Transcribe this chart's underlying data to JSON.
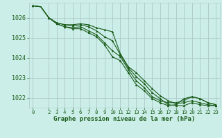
{
  "title": "Graphe pression niveau de la mer (hPa)",
  "background_color": "#cceee8",
  "grid_color": "#b0cccc",
  "line_color": "#1a5c1a",
  "xlim": [
    -0.5,
    23.5
  ],
  "ylim": [
    1021.5,
    1026.75
  ],
  "yticks": [
    1022,
    1023,
    1024,
    1025,
    1026
  ],
  "xticks": [
    0,
    2,
    3,
    4,
    5,
    6,
    7,
    8,
    9,
    10,
    11,
    12,
    13,
    14,
    15,
    16,
    17,
    18,
    19,
    20,
    21,
    22,
    23
  ],
  "series": [
    [
      1026.6,
      1026.55,
      1026.0,
      1025.75,
      1025.65,
      1025.65,
      1025.7,
      1025.65,
      1025.5,
      1025.4,
      1025.3,
      1024.2,
      1023.55,
      1023.25,
      1022.85,
      1022.45,
      1022.1,
      1021.85,
      1021.7,
      1021.75,
      1021.85,
      1021.75,
      1021.65,
      1021.6
    ],
    [
      1026.6,
      1026.55,
      1026.0,
      1025.75,
      1025.65,
      1025.6,
      1025.65,
      1025.55,
      1025.35,
      1025.05,
      1024.85,
      1024.15,
      1023.5,
      1023.05,
      1022.7,
      1022.25,
      1021.95,
      1021.65,
      1021.6,
      1021.6,
      1021.75,
      1021.65,
      1021.6,
      1021.6
    ],
    [
      1026.6,
      1026.55,
      1026.0,
      1025.7,
      1025.55,
      1025.5,
      1025.55,
      1025.35,
      1025.15,
      1024.75,
      1024.35,
      1024.05,
      1023.4,
      1022.85,
      1022.5,
      1022.05,
      1021.85,
      1021.75,
      1021.75,
      1021.85,
      1022.05,
      1021.95,
      1021.75,
      1021.65
    ],
    [
      1026.6,
      1026.55,
      1026.0,
      1025.7,
      1025.55,
      1025.45,
      1025.45,
      1025.25,
      1025.05,
      1024.65,
      1024.05,
      1023.85,
      1023.25,
      1022.65,
      1022.35,
      1021.95,
      1021.75,
      1021.6,
      1021.65,
      1021.95,
      1022.05,
      1021.95,
      1021.75,
      1021.65
    ]
  ],
  "marker_x": [
    0,
    2,
    3,
    4,
    5,
    6,
    7,
    8,
    9,
    10,
    11,
    12,
    13,
    14,
    15,
    16,
    17,
    18,
    19,
    20,
    21,
    22,
    23
  ]
}
